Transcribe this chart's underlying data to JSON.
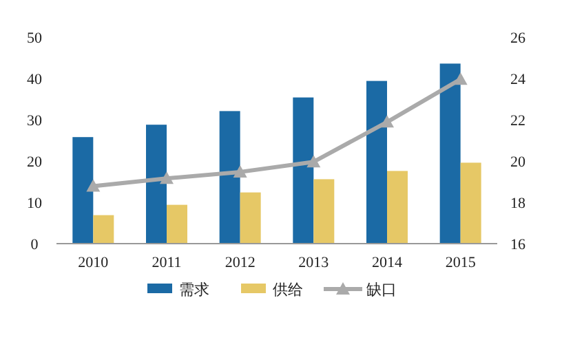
{
  "chart_data": {
    "type": "bar",
    "categories": [
      "2010",
      "2011",
      "2012",
      "2013",
      "2014",
      "2015"
    ],
    "series": [
      {
        "name": "需求",
        "color": "#1b6aa5",
        "values": [
          25.8,
          28.8,
          32.1,
          35.4,
          39.4,
          43.6
        ]
      },
      {
        "name": "供给",
        "color": "#e6c866",
        "values": [
          6.9,
          9.4,
          12.4,
          15.6,
          17.6,
          19.6
        ]
      },
      {
        "name": "缺口",
        "type": "line",
        "axis": "y2",
        "color": "#aaaaaa",
        "values": [
          18.78,
          19.16,
          19.47,
          19.96,
          21.89,
          23.96
        ]
      }
    ],
    "ylim": [
      0,
      50
    ],
    "yticks": [
      0,
      10,
      20,
      30,
      40,
      50
    ],
    "y2lim": [
      16,
      26
    ],
    "y2ticks": [
      16,
      18,
      20,
      22,
      24,
      26
    ],
    "legend": "bottom",
    "marker": "triangle"
  }
}
